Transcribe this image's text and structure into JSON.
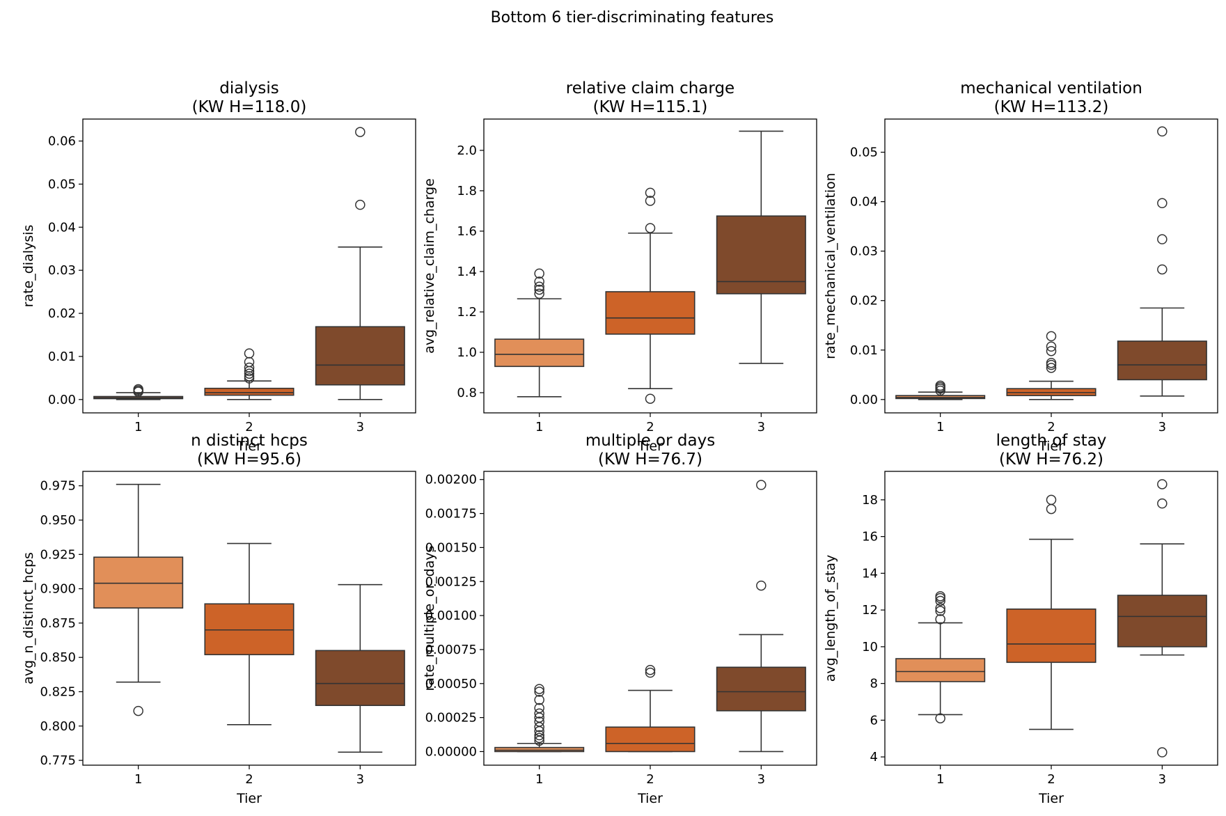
{
  "figure_title": "Bottom 6 tier-discriminating features",
  "colors": {
    "tier1": "#e18f59",
    "tier2": "#cd6328",
    "tier3": "#7f4a2c",
    "line": "#333333"
  },
  "chart_data": [
    {
      "type": "box",
      "title_line1": "dialysis",
      "title_line2": "(KW H=118.0)",
      "xlabel": "Tier",
      "ylabel": "rate_dialysis",
      "categories": [
        "1",
        "2",
        "3"
      ],
      "ylim": [
        -0.0031,
        0.0651
      ],
      "yticks": [
        0.0,
        0.01,
        0.02,
        0.03,
        0.04,
        0.05,
        0.06
      ],
      "ytick_labels": [
        "0.00",
        "0.01",
        "0.02",
        "0.03",
        "0.04",
        "0.05",
        "0.06"
      ],
      "boxes": [
        {
          "whislo": 0.0,
          "q1": 0.0002,
          "med": 0.0004,
          "q3": 0.0007,
          "whishi": 0.0016,
          "fliers": [
            0.0018,
            0.0021,
            0.0024
          ]
        },
        {
          "whislo": 0.0,
          "q1": 0.001,
          "med": 0.0016,
          "q3": 0.0026,
          "whishi": 0.0043,
          "fliers": [
            0.0049,
            0.0054,
            0.006,
            0.0066,
            0.0074,
            0.0087,
            0.0107
          ]
        },
        {
          "whislo": 0.0,
          "q1": 0.0034,
          "med": 0.008,
          "q3": 0.0169,
          "whishi": 0.0354,
          "fliers": [
            0.0452,
            0.0621
          ]
        }
      ]
    },
    {
      "type": "box",
      "title_line1": "relative claim charge",
      "title_line2": "(KW H=115.1)",
      "xlabel": "Tier",
      "ylabel": "avg_relative_claim_charge",
      "categories": [
        "1",
        "2",
        "3"
      ],
      "ylim": [
        0.7,
        2.155
      ],
      "yticks": [
        0.8,
        1.0,
        1.2,
        1.4,
        1.6,
        1.8,
        2.0
      ],
      "ytick_labels": [
        "0.8",
        "1.0",
        "1.2",
        "1.4",
        "1.6",
        "1.8",
        "2.0"
      ],
      "boxes": [
        {
          "whislo": 0.78,
          "q1": 0.93,
          "med": 0.99,
          "q3": 1.065,
          "whishi": 1.265,
          "fliers": [
            1.29,
            1.31,
            1.325,
            1.35,
            1.39
          ]
        },
        {
          "whislo": 0.82,
          "q1": 1.09,
          "med": 1.17,
          "q3": 1.3,
          "whishi": 1.59,
          "fliers": [
            0.77,
            1.615,
            1.75,
            1.79
          ]
        },
        {
          "whislo": 0.945,
          "q1": 1.29,
          "med": 1.35,
          "q3": 1.675,
          "whishi": 2.095,
          "fliers": []
        }
      ]
    },
    {
      "type": "box",
      "title_line1": "mechanical ventilation",
      "title_line2": "(KW H=113.2)",
      "xlabel": "Tier",
      "ylabel": "rate_mechanical_ventilation",
      "categories": [
        "1",
        "2",
        "3"
      ],
      "ylim": [
        -0.0027,
        0.0567
      ],
      "yticks": [
        0.0,
        0.01,
        0.02,
        0.03,
        0.04,
        0.05
      ],
      "ytick_labels": [
        "0.00",
        "0.01",
        "0.02",
        "0.03",
        "0.04",
        "0.05"
      ],
      "boxes": [
        {
          "whislo": 0.0,
          "q1": 0.0002,
          "med": 0.0004,
          "q3": 0.0008,
          "whishi": 0.0015,
          "fliers": [
            0.0018,
            0.0022,
            0.0025,
            0.0028
          ]
        },
        {
          "whislo": 0.0,
          "q1": 0.0008,
          "med": 0.0014,
          "q3": 0.0022,
          "whishi": 0.0037,
          "fliers": [
            0.0064,
            0.007,
            0.0074,
            0.0098,
            0.0107,
            0.0128
          ]
        },
        {
          "whislo": 0.0007,
          "q1": 0.004,
          "med": 0.007,
          "q3": 0.0118,
          "whishi": 0.0185,
          "fliers": [
            0.0263,
            0.0324,
            0.0397,
            0.0542
          ]
        }
      ]
    },
    {
      "type": "box",
      "title_line1": "n distinct hcps",
      "title_line2": "(KW H=95.6)",
      "xlabel": "Tier",
      "ylabel": "avg_n_distinct_hcps",
      "categories": [
        "1",
        "2",
        "3"
      ],
      "ylim": [
        0.7715,
        0.9855
      ],
      "yticks": [
        0.775,
        0.8,
        0.825,
        0.85,
        0.875,
        0.9,
        0.925,
        0.95,
        0.975
      ],
      "ytick_labels": [
        "0.775",
        "0.800",
        "0.825",
        "0.850",
        "0.875",
        "0.900",
        "0.925",
        "0.950",
        "0.975"
      ],
      "boxes": [
        {
          "whislo": 0.832,
          "q1": 0.886,
          "med": 0.904,
          "q3": 0.923,
          "whishi": 0.976,
          "fliers": [
            0.811
          ]
        },
        {
          "whislo": 0.801,
          "q1": 0.852,
          "med": 0.87,
          "q3": 0.889,
          "whishi": 0.933,
          "fliers": []
        },
        {
          "whislo": 0.781,
          "q1": 0.815,
          "med": 0.831,
          "q3": 0.855,
          "whishi": 0.903,
          "fliers": []
        }
      ]
    },
    {
      "type": "box",
      "title_line1": "multiple or days",
      "title_line2": "(KW H=76.7)",
      "xlabel": "Tier",
      "ylabel": "rate_multiple_or_days",
      "categories": [
        "1",
        "2",
        "3"
      ],
      "ylim": [
        -0.0001,
        0.00206
      ],
      "yticks": [
        0.0,
        0.00025,
        0.0005,
        0.00075,
        0.001,
        0.00125,
        0.0015,
        0.00175,
        0.002
      ],
      "ytick_labels": [
        "0.00000",
        "0.00025",
        "0.00050",
        "0.00075",
        "0.00100",
        "0.00125",
        "0.00150",
        "0.00175",
        "0.00200"
      ],
      "boxes": [
        {
          "whislo": 0.0,
          "q1": 0.0,
          "med": 1e-05,
          "q3": 3e-05,
          "whishi": 6e-05,
          "fliers": [
            8e-05,
            0.0001,
            0.00012,
            0.00015,
            0.00018,
            0.00022,
            0.00025,
            0.00028,
            0.00032,
            0.00038,
            0.00044,
            0.00046
          ]
        },
        {
          "whislo": 0.0,
          "q1": 0.0,
          "med": 6e-05,
          "q3": 0.00018,
          "whishi": 0.00045,
          "fliers": [
            0.00058,
            0.0006
          ]
        },
        {
          "whislo": 0.0,
          "q1": 0.0003,
          "med": 0.00044,
          "q3": 0.00062,
          "whishi": 0.00086,
          "fliers": [
            0.00122,
            0.00196
          ]
        }
      ]
    },
    {
      "type": "box",
      "title_line1": "length of stay",
      "title_line2": "(KW H=76.2)",
      "xlabel": "Tier",
      "ylabel": "avg_length_of_stay",
      "categories": [
        "1",
        "2",
        "3"
      ],
      "ylim": [
        3.55,
        19.55
      ],
      "yticks": [
        4,
        6,
        8,
        10,
        12,
        14,
        16,
        18
      ],
      "ytick_labels": [
        "4",
        "6",
        "8",
        "10",
        "12",
        "14",
        "16",
        "18"
      ],
      "boxes": [
        {
          "whislo": 6.3,
          "q1": 8.1,
          "med": 8.65,
          "q3": 9.35,
          "whishi": 11.3,
          "fliers": [
            6.1,
            11.5,
            11.95,
            12.1,
            12.5,
            12.65,
            12.75
          ]
        },
        {
          "whislo": 5.5,
          "q1": 9.15,
          "med": 10.15,
          "q3": 12.05,
          "whishi": 15.85,
          "fliers": [
            17.5,
            18.0
          ]
        },
        {
          "whislo": 9.55,
          "q1": 10.0,
          "med": 11.65,
          "q3": 12.8,
          "whishi": 15.6,
          "fliers": [
            4.25,
            17.8,
            18.85
          ]
        }
      ]
    }
  ]
}
